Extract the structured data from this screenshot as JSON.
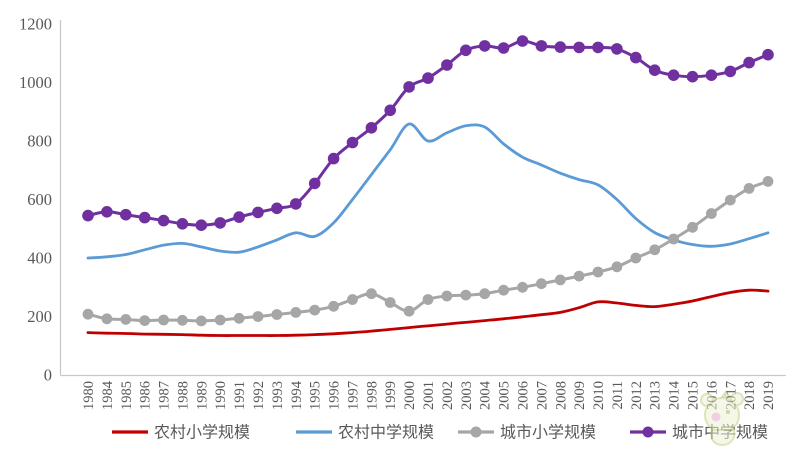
{
  "chart_data": {
    "type": "line",
    "title": "",
    "xlabel": "",
    "ylabel": "",
    "ylim": [
      0,
      1200
    ],
    "yticks": [
      0,
      200,
      400,
      600,
      800,
      1000,
      1200
    ],
    "grid": false,
    "legend_position": "bottom",
    "categories": [
      "1980",
      "1984",
      "1985",
      "1986",
      "1987",
      "1988",
      "1989",
      "1990",
      "1991",
      "1992",
      "1993",
      "1994",
      "1995",
      "1996",
      "1997",
      "1998",
      "1999",
      "2000",
      "2001",
      "2002",
      "2003",
      "2004",
      "2005",
      "2006",
      "2007",
      "2008",
      "2009",
      "2010",
      "2011",
      "2012",
      "2013",
      "2014",
      "2015",
      "2016",
      "2017",
      "2018",
      "2019"
    ],
    "series": [
      {
        "name": "农村小学规模",
        "color": "#C00000",
        "marker": false,
        "values": [
          145,
          143,
          142,
          140,
          139,
          138,
          136,
          135,
          135,
          135,
          135,
          136,
          138,
          141,
          145,
          150,
          156,
          162,
          168,
          174,
          180,
          186,
          192,
          199,
          206,
          214,
          230,
          250,
          246,
          238,
          234,
          242,
          253,
          268,
          282,
          290,
          287
        ]
      },
      {
        "name": "农村中学规模",
        "color": "#5B9BD5",
        "marker": false,
        "values": [
          400,
          404,
          412,
          428,
          444,
          450,
          438,
          424,
          420,
          438,
          462,
          486,
          474,
          520,
          600,
          685,
          770,
          858,
          800,
          828,
          852,
          848,
          790,
          745,
          718,
          690,
          668,
          650,
          600,
          535,
          487,
          462,
          446,
          440,
          448,
          466,
          486
        ]
      },
      {
        "name": "城市小学规模",
        "color": "#A6A6A6",
        "marker": true,
        "values": [
          208,
          192,
          190,
          186,
          188,
          187,
          185,
          188,
          194,
          200,
          207,
          214,
          222,
          235,
          258,
          278,
          248,
          218,
          258,
          270,
          273,
          278,
          290,
          300,
          312,
          325,
          338,
          352,
          370,
          400,
          428,
          465,
          505,
          552,
          598,
          638,
          662
        ]
      },
      {
        "name": "城市中学规模",
        "color": "#7030A0",
        "marker": true,
        "values": [
          545,
          558,
          548,
          538,
          528,
          517,
          512,
          520,
          540,
          556,
          570,
          585,
          655,
          740,
          795,
          845,
          905,
          985,
          1015,
          1060,
          1110,
          1125,
          1118,
          1142,
          1125,
          1121,
          1120,
          1120,
          1115,
          1085,
          1042,
          1025,
          1020,
          1025,
          1038,
          1068,
          1095
        ]
      }
    ]
  },
  "axis": {
    "text_color": "#595959",
    "line_color": "#C9C9C9"
  },
  "watermark": {
    "type": "mascot-figure"
  }
}
